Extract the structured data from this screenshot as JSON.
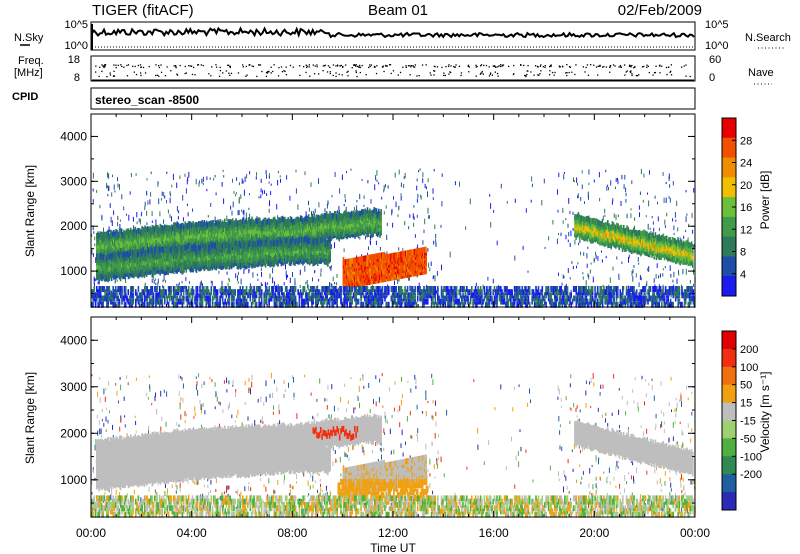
{
  "header": {
    "station": "TIGER (fitACF)",
    "beam": "Beam 01",
    "date": "02/Feb/2009"
  },
  "side_labels": {
    "nsky": "N.Sky",
    "nsearch": "N.Search",
    "freq_line1": "Freq.",
    "freq_line2": "[MHz]",
    "nave": "Nave",
    "cpid": "CPID",
    "cpid_value": "stereo_scan -8500"
  },
  "noise_panel": {
    "left_ticks": [
      "10^5",
      "10^0"
    ],
    "right_ticks": [
      "10^5",
      "10^0"
    ]
  },
  "freq_panel": {
    "left_ticks": [
      "18",
      "8"
    ],
    "right_ticks": [
      "60",
      "0"
    ]
  },
  "time_axis": {
    "label": "Time UT",
    "ticks": [
      "00:00",
      "04:00",
      "08:00",
      "12:00",
      "16:00",
      "20:00",
      "00:00"
    ]
  },
  "colors": {
    "power_scale": [
      "#1b1bf0",
      "#1e4fa8",
      "#2e7a5a",
      "#3f9a4a",
      "#6cbf3a",
      "#f0c000",
      "#f08c00",
      "#f05000",
      "#e80000"
    ],
    "velocity_scale": [
      "#2a2ab8",
      "#1f5fa0",
      "#2e8a50",
      "#4fb040",
      "#9cd070",
      "#bebebe",
      "#f0a010",
      "#f07010",
      "#f03010",
      "#e00000"
    ]
  },
  "chart_data": [
    {
      "type": "heatmap",
      "name": "power",
      "ylabel": "Slant Range [km]",
      "yticks": [
        "4000",
        "3000",
        "2000",
        "1000"
      ],
      "ylim": [
        200,
        4500
      ],
      "xlim_hours": [
        0,
        24
      ],
      "colorbar": {
        "label": "Power [dB]",
        "ticks": [
          "28",
          "24",
          "20",
          "16",
          "12",
          "8",
          "4"
        ],
        "range": [
          0,
          32
        ]
      },
      "features": [
        {
          "desc": "band",
          "t": [
            0,
            4,
            8,
            11
          ],
          "r": [
            1500,
            1800,
            1900,
            2050
          ],
          "level": 14
        },
        {
          "desc": "band",
          "t": [
            0,
            4,
            8
          ],
          "r": [
            1050,
            1300,
            1450
          ],
          "level": 12
        },
        {
          "desc": "patch",
          "t": [
            10,
            13.3
          ],
          "r": [
            700,
            1400
          ],
          "level": 28
        },
        {
          "desc": "band",
          "t": [
            19,
            21,
            24
          ],
          "r": [
            2000,
            1700,
            1300
          ],
          "level": 20
        },
        {
          "desc": "ground",
          "t": [
            0,
            24
          ],
          "r": [
            250,
            600
          ],
          "level": 8
        }
      ]
    },
    {
      "type": "heatmap",
      "name": "velocity",
      "ylabel": "Slant Range [km]",
      "yticks": [
        "4000",
        "3000",
        "2000",
        "1000"
      ],
      "ylim": [
        200,
        4500
      ],
      "xlim_hours": [
        0,
        24
      ],
      "colorbar": {
        "label": "Velocity [m s⁻¹]",
        "ticks": [
          "200",
          "100",
          "50",
          "15",
          "-15",
          "-50",
          "-100",
          "-200"
        ],
        "range": [
          -250,
          250
        ]
      }
    }
  ]
}
